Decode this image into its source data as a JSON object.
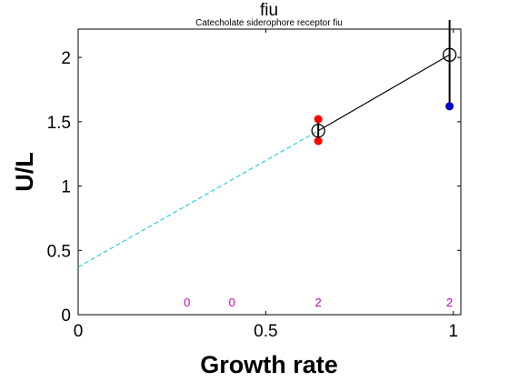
{
  "chart_data": {
    "type": "scatter",
    "title": "fiu",
    "subtitle": "Catecholate siderophore receptor fiu",
    "xlabel": "Growth rate",
    "ylabel": "U/L",
    "xlim": [
      0,
      1.02
    ],
    "ylim": [
      0,
      2.22
    ],
    "x_ticks": [
      0,
      0.5,
      1
    ],
    "x_tick_labels": [
      "0",
      "0.5",
      "1"
    ],
    "y_ticks": [
      0,
      0.5,
      1,
      1.5,
      2
    ],
    "y_tick_labels": [
      "0",
      "0.5",
      "1",
      "1.5",
      "2"
    ],
    "grid": false,
    "red_points": [
      {
        "x": 0.64,
        "y": 1.52
      },
      {
        "x": 0.64,
        "y": 1.35
      }
    ],
    "blue_points": [
      {
        "x": 0.99,
        "y": 1.62
      }
    ],
    "mean_points": [
      {
        "x": 0.64,
        "y": 1.43
      },
      {
        "x": 0.99,
        "y": 2.02
      }
    ],
    "error_bars": [
      {
        "x": 0.64,
        "low": 1.35,
        "high": 1.52
      },
      {
        "x": 0.99,
        "low": 1.62,
        "high": 2.3
      }
    ],
    "fit_line": {
      "x": [
        0.64,
        0.99
      ],
      "y": [
        1.43,
        2.02
      ]
    },
    "extrapolation_line": {
      "x": [
        0,
        0.64
      ],
      "y": [
        0.37,
        1.43
      ]
    },
    "sample_counts": [
      {
        "x": 0.29,
        "label": "0"
      },
      {
        "x": 0.41,
        "label": "0"
      },
      {
        "x": 0.64,
        "label": "2"
      },
      {
        "x": 0.99,
        "label": "2"
      }
    ],
    "colors": {
      "red_points": "#ff0000",
      "blue_points": "#0000cc",
      "extrapolation_line": "#00c8e0",
      "sample_counts": "#cc00cc",
      "axes": "#000000"
    }
  }
}
